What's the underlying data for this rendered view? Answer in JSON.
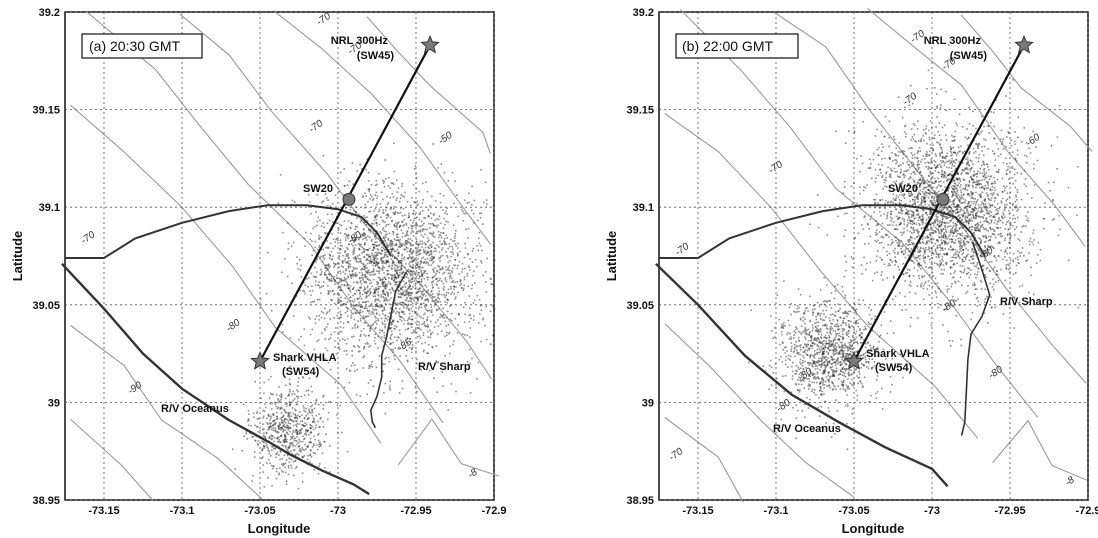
{
  "panels": [
    {
      "id": "a",
      "label": "(a) 20:30 GMT",
      "source_label_line1": "NRL 300Hz",
      "source_label_line2": "(SW45)",
      "sw20_label": "SW20",
      "vhla_label_line1": "Shark VHLA",
      "vhla_label_line2": "(SW54)",
      "sharp_label": "R/V Sharp",
      "oceanus_label": "R/V Oceanus",
      "contour_labels": [
        {
          "lon": -73.012,
          "lat": 39.193,
          "text": "-70"
        },
        {
          "lon": -72.992,
          "lat": 39.178,
          "text": "-70"
        },
        {
          "lon": -73.017,
          "lat": 39.138,
          "text": "-70"
        },
        {
          "lon": -72.934,
          "lat": 39.132,
          "text": "-50"
        },
        {
          "lon": -73.163,
          "lat": 39.081,
          "text": "-70"
        },
        {
          "lon": -72.992,
          "lat": 39.081,
          "text": "-80"
        },
        {
          "lon": -73.07,
          "lat": 39.036,
          "text": "-80"
        },
        {
          "lon": -73.133,
          "lat": 39.004,
          "text": "-90"
        },
        {
          "lon": -72.96,
          "lat": 39.026,
          "text": "-85"
        },
        {
          "lon": -72.915,
          "lat": 38.961,
          "text": "-8"
        }
      ],
      "blobs": [
        {
          "lon": -72.966,
          "lat": 39.066,
          "spread_lon": 0.028,
          "spread_lat": 0.022,
          "n": 2600
        },
        {
          "lon": -73.032,
          "lat": 38.986,
          "spread_lon": 0.012,
          "spread_lat": 0.012,
          "n": 650
        }
      ],
      "sharp_track": [
        [
          -72.956,
          39.067
        ],
        [
          -72.963,
          39.057
        ],
        [
          -72.966,
          39.045
        ],
        [
          -72.969,
          39.033
        ],
        [
          -72.972,
          39.024
        ],
        [
          -72.972,
          39.013
        ],
        [
          -72.975,
          39.003
        ],
        [
          -72.979,
          38.996
        ],
        [
          -72.978,
          38.99
        ],
        [
          -72.976,
          38.987
        ]
      ],
      "ship_track": [
        [
          -73.177,
          39.071
        ],
        [
          -73.15,
          39.048
        ],
        [
          -73.125,
          39.025
        ],
        [
          -73.1,
          39.007
        ],
        [
          -73.07,
          38.991
        ],
        [
          -73.045,
          38.98
        ],
        [
          -73.03,
          38.973
        ],
        [
          -73.01,
          38.965
        ],
        [
          -72.99,
          38.958
        ],
        [
          -72.98,
          38.953
        ]
      ]
    },
    {
      "id": "b",
      "label": "(b) 22:00 GMT",
      "source_label_line1": "NRL 300Hz",
      "source_label_line2": "(SW45)",
      "sw20_label": "SW20",
      "vhla_label_line1": "Shark VHLA",
      "vhla_label_line2": "(SW54)",
      "sharp_label": "R/V Sharp",
      "oceanus_label": "R/V Oceanus",
      "contour_labels": [
        {
          "lon": -73.012,
          "lat": 39.184,
          "text": "-70"
        },
        {
          "lon": -72.992,
          "lat": 39.17,
          "text": "-70"
        },
        {
          "lon": -73.017,
          "lat": 39.152,
          "text": "-70"
        },
        {
          "lon": -72.938,
          "lat": 39.131,
          "text": "-60"
        },
        {
          "lon": -73.103,
          "lat": 39.117,
          "text": "-70"
        },
        {
          "lon": -73.163,
          "lat": 39.075,
          "text": "-70"
        },
        {
          "lon": -72.968,
          "lat": 39.073,
          "text": "-80"
        },
        {
          "lon": -72.992,
          "lat": 39.046,
          "text": "-80"
        },
        {
          "lon": -73.084,
          "lat": 39.011,
          "text": "-80"
        },
        {
          "lon": -73.098,
          "lat": 38.995,
          "text": "-80"
        },
        {
          "lon": -72.962,
          "lat": 39.012,
          "text": "-80"
        },
        {
          "lon": -73.167,
          "lat": 38.97,
          "text": "-70"
        },
        {
          "lon": -72.913,
          "lat": 38.957,
          "text": "-8"
        }
      ],
      "blobs": [
        {
          "lon": -72.991,
          "lat": 39.098,
          "spread_lon": 0.026,
          "spread_lat": 0.022,
          "n": 2600
        },
        {
          "lon": -73.066,
          "lat": 39.026,
          "spread_lon": 0.016,
          "spread_lat": 0.013,
          "n": 1100
        }
      ],
      "sharp_track": [
        [
          -72.974,
          39.082
        ],
        [
          -72.968,
          39.068
        ],
        [
          -72.963,
          39.055
        ],
        [
          -72.968,
          39.044
        ],
        [
          -72.975,
          39.035
        ],
        [
          -72.977,
          39.022
        ],
        [
          -72.978,
          39.005
        ],
        [
          -72.979,
          38.99
        ],
        [
          -72.981,
          38.983
        ]
      ],
      "ship_track": [
        [
          -73.177,
          39.071
        ],
        [
          -73.15,
          39.05
        ],
        [
          -73.12,
          39.024
        ],
        [
          -73.09,
          39.004
        ],
        [
          -73.06,
          38.99
        ],
        [
          -73.03,
          38.977
        ],
        [
          -73.0,
          38.966
        ],
        [
          -72.99,
          38.957
        ]
      ]
    }
  ],
  "xlabel": "Longitude",
  "ylabel": "Latitude",
  "xticks": [
    -73.15,
    -73.1,
    -73.05,
    -73,
    -72.95,
    -72.9
  ],
  "xtick_labels": [
    "-73.15",
    "-73.1",
    "-73.05",
    "-73",
    "-72.95",
    "-72.9"
  ],
  "yticks": [
    38.95,
    39,
    39.05,
    39.1,
    39.15,
    39.2
  ],
  "ytick_labels": [
    "38.95",
    "39",
    "39.05",
    "39.1",
    "39.15",
    "39.2"
  ],
  "xlim": [
    -73.175,
    -72.9
  ],
  "ylim": [
    38.95,
    39.2
  ],
  "source_position": {
    "lon": -72.941,
    "lat": 39.183
  },
  "sw20_position": {
    "lon": -72.993,
    "lat": 39.104
  },
  "vhla_position": {
    "lon": -73.05,
    "lat": 39.021
  },
  "north_track": [
    [
      -73.175,
      39.074
    ],
    [
      -73.15,
      39.074
    ],
    [
      -73.13,
      39.084
    ],
    [
      -73.1,
      39.092
    ],
    [
      -73.07,
      39.098
    ],
    [
      -73.045,
      39.101
    ],
    [
      -73.02,
      39.101
    ],
    [
      -73.0,
      39.099
    ],
    [
      -72.985,
      39.095
    ],
    [
      -72.975,
      39.087
    ],
    [
      -72.966,
      39.075
    ]
  ],
  "colors": {
    "bathymetry": "#9a9a9a",
    "grid": "#555555",
    "track": "#333333",
    "intensity": "#333333",
    "marker": "#7a7a7a"
  }
}
